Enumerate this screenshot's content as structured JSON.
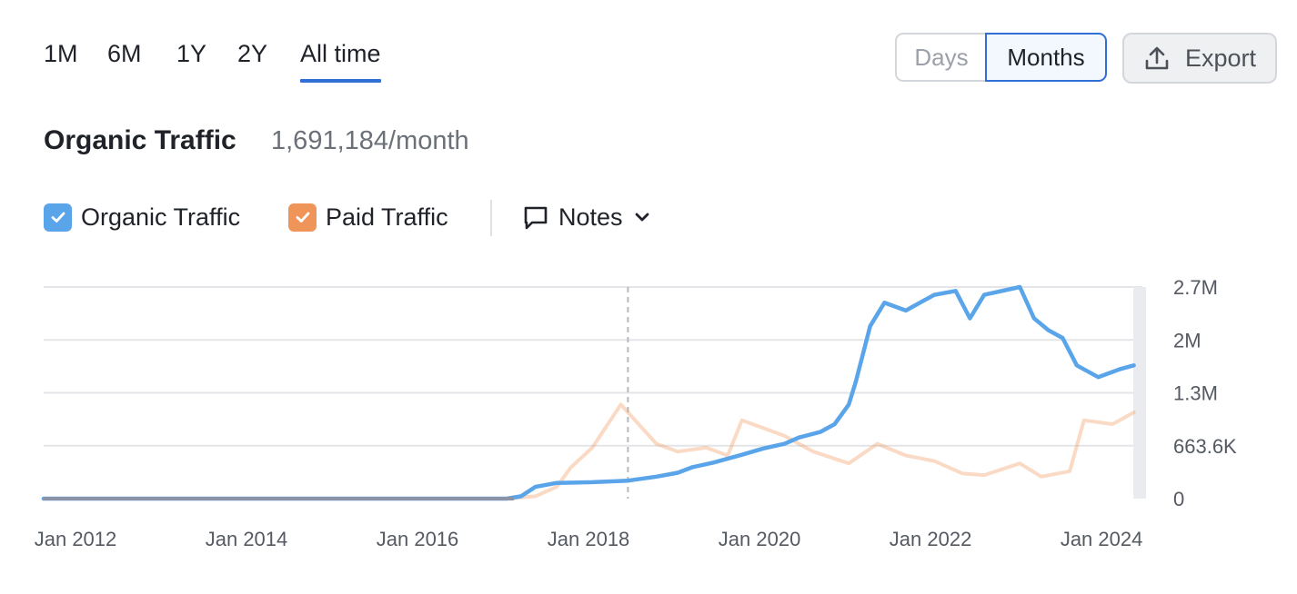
{
  "range_tabs": [
    {
      "label": "1M",
      "active": false
    },
    {
      "label": "6M",
      "active": false
    },
    {
      "label": "1Y",
      "active": false
    },
    {
      "label": "2Y",
      "active": false
    },
    {
      "label": "All time",
      "active": true
    }
  ],
  "view_toggle": {
    "days": "Days",
    "months": "Months",
    "selected": "Months"
  },
  "export_label": "Export",
  "metric": {
    "title": "Organic Traffic",
    "value": "1,691,184/month"
  },
  "legend": {
    "organic": {
      "label": "Organic Traffic",
      "checked": true,
      "color": "#5aa4ea"
    },
    "paid": {
      "label": "Paid Traffic",
      "checked": true,
      "color": "#f0955a"
    },
    "notes": {
      "label": "Notes"
    }
  },
  "chart_data": {
    "type": "line",
    "x_axis": {
      "type": "date",
      "ticks": [
        "Jan 2012",
        "Jan 2014",
        "Jan 2016",
        "Jan 2018",
        "Jan 2020",
        "Jan 2022",
        "Jan 2024"
      ]
    },
    "y_axis": {
      "position": "right",
      "ticks": [
        "2.7M",
        "2M",
        "1.3M",
        "663.6K",
        "0"
      ],
      "ylim": [
        0,
        2700000
      ]
    },
    "grid": true,
    "marker_date": "2018-11",
    "series": [
      {
        "name": "Organic Traffic",
        "color": "#5aa4ea",
        "points": [
          [
            "2012-01",
            0
          ],
          [
            "2016-01",
            0
          ],
          [
            "2017-06",
            0
          ],
          [
            "2017-08",
            30000
          ],
          [
            "2017-10",
            150000
          ],
          [
            "2018-01",
            200000
          ],
          [
            "2018-06",
            210000
          ],
          [
            "2018-11",
            230000
          ],
          [
            "2019-03",
            280000
          ],
          [
            "2019-06",
            330000
          ],
          [
            "2019-08",
            400000
          ],
          [
            "2019-11",
            460000
          ],
          [
            "2020-03",
            560000
          ],
          [
            "2020-06",
            640000
          ],
          [
            "2020-09",
            700000
          ],
          [
            "2020-11",
            780000
          ],
          [
            "2021-02",
            850000
          ],
          [
            "2021-04",
            950000
          ],
          [
            "2021-06",
            1200000
          ],
          [
            "2021-07",
            1500000
          ],
          [
            "2021-09",
            2200000
          ],
          [
            "2021-11",
            2500000
          ],
          [
            "2022-02",
            2400000
          ],
          [
            "2022-06",
            2600000
          ],
          [
            "2022-09",
            2650000
          ],
          [
            "2022-11",
            2300000
          ],
          [
            "2023-01",
            2600000
          ],
          [
            "2023-06",
            2700000
          ],
          [
            "2023-08",
            2300000
          ],
          [
            "2023-10",
            2150000
          ],
          [
            "2023-12",
            2050000
          ],
          [
            "2024-02",
            1700000
          ],
          [
            "2024-05",
            1550000
          ],
          [
            "2024-08",
            1650000
          ],
          [
            "2024-10",
            1700000
          ]
        ]
      },
      {
        "name": "Paid Traffic",
        "color": "#f0955a",
        "points": [
          [
            "2012-01",
            0
          ],
          [
            "2017-06",
            0
          ],
          [
            "2017-10",
            30000
          ],
          [
            "2018-01",
            150000
          ],
          [
            "2018-03",
            400000
          ],
          [
            "2018-06",
            650000
          ],
          [
            "2018-10",
            1200000
          ],
          [
            "2018-12",
            1000000
          ],
          [
            "2019-03",
            700000
          ],
          [
            "2019-06",
            600000
          ],
          [
            "2019-10",
            650000
          ],
          [
            "2020-01",
            550000
          ],
          [
            "2020-03",
            1000000
          ],
          [
            "2020-06",
            900000
          ],
          [
            "2020-09",
            800000
          ],
          [
            "2021-01",
            600000
          ],
          [
            "2021-06",
            450000
          ],
          [
            "2021-10",
            700000
          ],
          [
            "2022-02",
            550000
          ],
          [
            "2022-06",
            480000
          ],
          [
            "2022-10",
            320000
          ],
          [
            "2023-01",
            300000
          ],
          [
            "2023-06",
            450000
          ],
          [
            "2023-09",
            280000
          ],
          [
            "2024-01",
            350000
          ],
          [
            "2024-03",
            1000000
          ],
          [
            "2024-07",
            950000
          ],
          [
            "2024-10",
            1100000
          ]
        ]
      }
    ]
  }
}
